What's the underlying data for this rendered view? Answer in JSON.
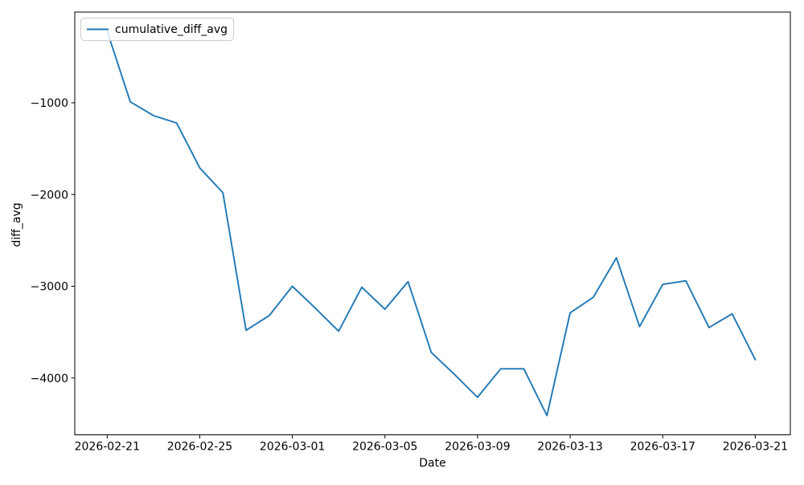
{
  "chart_data": {
    "type": "line",
    "title": "",
    "xlabel": "Date",
    "ylabel": "diff_avg",
    "grid": false,
    "background": "#ffffff",
    "axis_color": "#000000",
    "legend": {
      "position": "upper-left",
      "entries": [
        {
          "label": "cumulative_diff_avg",
          "color": "#1f77b4"
        }
      ]
    },
    "x": [
      "2026-02-21",
      "2026-02-22",
      "2026-02-23",
      "2026-02-24",
      "2026-02-25",
      "2026-02-26",
      "2026-02-27",
      "2026-02-28",
      "2026-03-01",
      "2026-03-02",
      "2026-03-03",
      "2026-03-04",
      "2026-03-05",
      "2026-03-06",
      "2026-03-07",
      "2026-03-08",
      "2026-03-09",
      "2026-03-10",
      "2026-03-11",
      "2026-03-12",
      "2026-03-13",
      "2026-03-14",
      "2026-03-15",
      "2026-03-16",
      "2026-03-17",
      "2026-03-18",
      "2026-03-19",
      "2026-03-20",
      "2026-03-21"
    ],
    "series": [
      {
        "name": "cumulative_diff_avg",
        "color": "#1f77b4",
        "values": [
          -220,
          -990,
          -1140,
          -1220,
          -1710,
          -1980,
          -3480,
          -3320,
          -3000,
          -3240,
          -3490,
          -3010,
          -3250,
          -2950,
          -3720,
          -3960,
          -4210,
          -3900,
          -3900,
          -4410,
          -3290,
          -3120,
          -2690,
          -3440,
          -2980,
          -2940,
          -3450,
          -3300,
          -3800
        ]
      }
    ],
    "x_tick_indices": [
      0,
      4,
      8,
      12,
      16,
      20,
      24,
      28
    ],
    "x_tick_labels": [
      "2026-02-21",
      "2026-02-25",
      "2026-03-01",
      "2026-03-05",
      "2026-03-09",
      "2026-03-13",
      "2026-03-17",
      "2026-03-21"
    ],
    "y_ticks": [
      -1000,
      -2000,
      -3000,
      -4000
    ],
    "y_tick_labels": [
      "−1000",
      "−2000",
      "−3000",
      "−4000"
    ],
    "xlim_days": [
      -1.4,
      29.4
    ],
    "ylim": [
      -4620,
      -10
    ]
  }
}
